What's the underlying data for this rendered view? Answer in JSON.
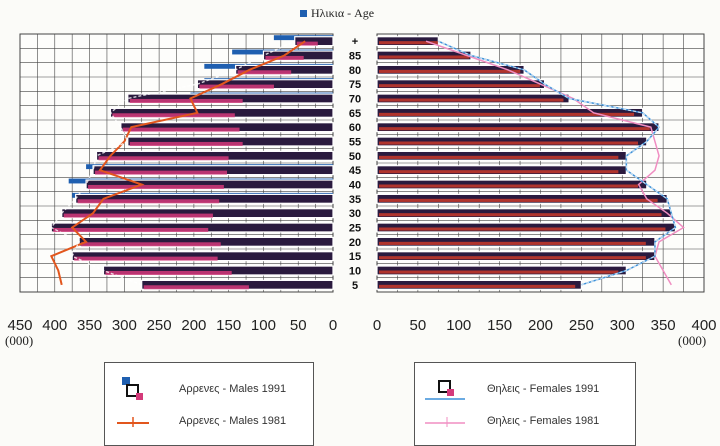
{
  "chart_data": {
    "type": "bar",
    "title": "Ηλικια - Age",
    "orientation": "horizontal population pyramid",
    "age_groups": [
      "5",
      "10",
      "15",
      "20",
      "25",
      "30",
      "35",
      "40",
      "45",
      "50",
      "55",
      "60",
      "65",
      "70",
      "75",
      "80",
      "85",
      "+"
    ],
    "left_panel": {
      "axis_ticks": [
        "450",
        "400",
        "350",
        "300",
        "250",
        "200",
        "150",
        "100",
        "50",
        "0"
      ],
      "unit": "(000)",
      "xlim": [
        0,
        450
      ],
      "series": [
        {
          "name": "Αρρενες - Males 1991",
          "values": [
            275,
            330,
            375,
            365,
            405,
            390,
            370,
            355,
            345,
            340,
            295,
            305,
            320,
            295,
            195,
            140,
            100,
            55
          ]
        },
        {
          "name": "Αρρενες - Males 1981",
          "values": [
            390,
            395,
            405,
            355,
            375,
            345,
            330,
            275,
            335,
            320,
            300,
            290,
            195,
            205,
            160,
            120,
            70,
            40
          ]
        }
      ],
      "blue_bar_ends": [
        0,
        0,
        0,
        0,
        0,
        0,
        375,
        380,
        355,
        0,
        0,
        0,
        0,
        205,
        185,
        185,
        145,
        85
      ]
    },
    "right_panel": {
      "axis_ticks": [
        "0",
        "50",
        "100",
        "150",
        "200",
        "250",
        "300",
        "350",
        "400"
      ],
      "unit": "(000)",
      "xlim": [
        0,
        400
      ],
      "series": [
        {
          "name": "Θηλεις - Females 1991",
          "values": [
            250,
            305,
            340,
            340,
            365,
            360,
            355,
            330,
            305,
            305,
            330,
            345,
            325,
            235,
            205,
            180,
            115,
            75
          ]
        },
        {
          "name": "Θηλεις - Females 1981",
          "values": [
            360,
            350,
            340,
            345,
            375,
            355,
            330,
            320,
            340,
            345,
            340,
            335,
            265,
            240,
            200,
            160,
            110,
            60
          ]
        }
      ]
    },
    "legend": {
      "left": [
        "Αρρενες - Males 1991",
        "Αρρενες - Males 1981"
      ],
      "right": [
        "Θηλεις - Females 1991",
        "Θηλεις - Females 1981"
      ]
    },
    "colors": {
      "bar_fill": "#2a1a3e",
      "bar_outline": "#ffffff",
      "male_1981_line": "#e2561d",
      "female_1991_line": "#3a8fd8",
      "female_1981_line": "#f08ec2",
      "pink_marker": "#d43a7a",
      "blue_marker": "#1f5fb0",
      "grid": "#444444"
    },
    "grid": true
  }
}
